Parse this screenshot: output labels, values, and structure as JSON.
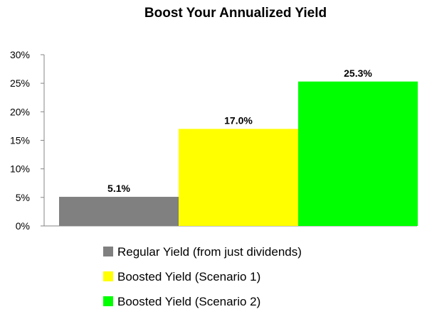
{
  "chart_data": {
    "type": "bar",
    "title": "Boost Your Annualized Yield",
    "xlabel": "",
    "ylabel": "",
    "ylim": [
      0,
      30
    ],
    "yticks": [
      "0%",
      "5%",
      "10%",
      "15%",
      "20%",
      "25%",
      "30%"
    ],
    "grid": false,
    "legend_position": "bottom",
    "series": [
      {
        "name": "Regular Yield (from just dividends)",
        "value": 5.1,
        "label": "5.1%",
        "color": "#808080"
      },
      {
        "name": "Boosted Yield (Scenario 1)",
        "value": 17.0,
        "label": "17.0%",
        "color": "#ffff00"
      },
      {
        "name": "Boosted Yield (Scenario 2)",
        "value": 25.3,
        "label": "25.3%",
        "color": "#00ff00"
      }
    ]
  }
}
